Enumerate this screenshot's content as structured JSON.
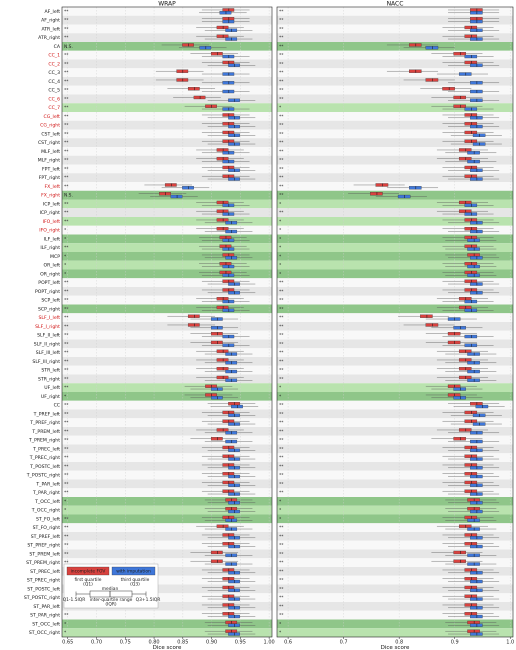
{
  "chart_data": {
    "type": "boxplot",
    "panels": [
      {
        "title": "WRAP",
        "xlabel": "Dice score",
        "xlim": [
          0.64,
          1.005
        ],
        "ticks": [
          "0.65",
          "0.70",
          "0.75",
          "0.80",
          "0.85",
          "0.90",
          "0.95",
          "1.00"
        ],
        "tick_values": [
          0.65,
          0.7,
          0.75,
          0.8,
          0.85,
          0.9,
          0.95,
          1.0
        ]
      },
      {
        "title": "NACC",
        "xlabel": "Dice score",
        "xlim": [
          0.58,
          1.005
        ],
        "ticks": [
          "0.6",
          "0.7",
          "0.8",
          "0.9",
          "1.0"
        ],
        "tick_values": [
          0.6,
          0.7,
          0.8,
          0.9,
          1.0
        ]
      }
    ],
    "series": [
      {
        "name": "incomplete FOV",
        "color": "#d9423f"
      },
      {
        "name": "with imputation",
        "color": "#3f77d9"
      }
    ],
    "colors": {
      "gray_row": "#e6e6e6",
      "green_row": "#b9e3ae",
      "dark_green_row": "#8fc689",
      "white_row": "#f8f8f8"
    },
    "rows": [
      {
        "label": "AF_left",
        "red": false,
        "band": "w",
        "wsig": "**",
        "nsig": "**",
        "w": [
          0.93,
          0.925
        ],
        "n": [
          0.94,
          0.94
        ]
      },
      {
        "label": "AF_right",
        "red": false,
        "band": "g",
        "wsig": "**",
        "nsig": "**",
        "w": [
          0.93,
          0.93
        ],
        "n": [
          0.94,
          0.94
        ]
      },
      {
        "label": "ATR_left",
        "red": false,
        "band": "w",
        "wsig": "**",
        "nsig": "**",
        "w": [
          0.92,
          0.935
        ],
        "n": [
          0.93,
          0.94
        ]
      },
      {
        "label": "ATR_right",
        "red": false,
        "band": "g",
        "wsig": "**",
        "nsig": "**",
        "w": [
          0.92,
          0.935
        ],
        "n": [
          0.93,
          0.94
        ]
      },
      {
        "label": "CA",
        "red": false,
        "band": "dg",
        "wsig": "N.S.",
        "nsig": "**",
        "w": [
          0.86,
          0.89
        ],
        "n": [
          0.83,
          0.86
        ]
      },
      {
        "label": "CC_1",
        "red": true,
        "band": "w",
        "wsig": "**",
        "nsig": "**",
        "w": [
          0.91,
          0.93
        ],
        "n": [
          0.91,
          0.93
        ]
      },
      {
        "label": "CC_2",
        "red": true,
        "band": "g",
        "wsig": "**",
        "nsig": "**",
        "w": [
          0.93,
          0.94
        ],
        "n": [
          0.93,
          0.94
        ]
      },
      {
        "label": "CC_3",
        "red": false,
        "band": "w",
        "wsig": "**",
        "nsig": "**",
        "w": [
          0.85,
          0.93
        ],
        "n": [
          0.83,
          0.92
        ]
      },
      {
        "label": "CC_4",
        "red": false,
        "band": "g",
        "wsig": "**",
        "nsig": "**",
        "w": [
          0.85,
          0.93
        ],
        "n": [
          0.86,
          0.94
        ]
      },
      {
        "label": "CC_5",
        "red": false,
        "band": "w",
        "wsig": "**",
        "nsig": "**",
        "w": [
          0.87,
          0.93
        ],
        "n": [
          0.89,
          0.94
        ]
      },
      {
        "label": "CC_6",
        "red": true,
        "band": "g",
        "wsig": "**",
        "nsig": "**",
        "w": [
          0.88,
          0.94
        ],
        "n": [
          0.91,
          0.94
        ]
      },
      {
        "label": "CC_7",
        "red": true,
        "band": "lg",
        "wsig": "**",
        "nsig": "*",
        "w": [
          0.9,
          0.93
        ],
        "n": [
          0.91,
          0.93
        ]
      },
      {
        "label": "CG_left",
        "red": true,
        "band": "w",
        "wsig": "**",
        "nsig": "**",
        "w": [
          0.93,
          0.94
        ],
        "n": [
          0.93,
          0.94
        ]
      },
      {
        "label": "CG_right",
        "red": true,
        "band": "g",
        "wsig": "**",
        "nsig": "**",
        "w": [
          0.93,
          0.94
        ],
        "n": [
          0.93,
          0.94
        ]
      },
      {
        "label": "CST_left",
        "red": false,
        "band": "w",
        "wsig": "**",
        "nsig": "**",
        "w": [
          0.93,
          0.94
        ],
        "n": [
          0.93,
          0.945
        ]
      },
      {
        "label": "CST_right",
        "red": false,
        "band": "g",
        "wsig": "**",
        "nsig": "**",
        "w": [
          0.93,
          0.94
        ],
        "n": [
          0.93,
          0.945
        ]
      },
      {
        "label": "MLF_left",
        "red": false,
        "band": "w",
        "wsig": "**",
        "nsig": "**",
        "w": [
          0.92,
          0.93
        ],
        "n": [
          0.92,
          0.935
        ]
      },
      {
        "label": "MLF_right",
        "red": false,
        "band": "g",
        "wsig": "**",
        "nsig": "**",
        "w": [
          0.92,
          0.93
        ],
        "n": [
          0.92,
          0.935
        ]
      },
      {
        "label": "FPT_left",
        "red": false,
        "band": "w",
        "wsig": "**",
        "nsig": "**",
        "w": [
          0.93,
          0.94
        ],
        "n": [
          0.93,
          0.94
        ]
      },
      {
        "label": "FPT_right",
        "red": false,
        "band": "g",
        "wsig": "**",
        "nsig": "**",
        "w": [
          0.93,
          0.94
        ],
        "n": [
          0.93,
          0.94
        ]
      },
      {
        "label": "FX_left",
        "red": true,
        "band": "w",
        "wsig": "**",
        "nsig": "**",
        "w": [
          0.83,
          0.86
        ],
        "n": [
          0.77,
          0.83
        ]
      },
      {
        "label": "FX_right",
        "red": true,
        "band": "dg",
        "wsig": "N.S.",
        "nsig": "**",
        "w": [
          0.82,
          0.84
        ],
        "n": [
          0.76,
          0.81
        ]
      },
      {
        "label": "ICP_left",
        "red": false,
        "band": "lg",
        "wsig": "**",
        "nsig": "*",
        "w": [
          0.92,
          0.93
        ],
        "n": [
          0.92,
          0.93
        ]
      },
      {
        "label": "ICP_right",
        "red": false,
        "band": "g",
        "wsig": "**",
        "nsig": "**",
        "w": [
          0.92,
          0.93
        ],
        "n": [
          0.92,
          0.93
        ]
      },
      {
        "label": "IFO_left",
        "red": true,
        "band": "lg",
        "wsig": "**",
        "nsig": "*",
        "w": [
          0.92,
          0.935
        ],
        "n": [
          0.93,
          0.94
        ]
      },
      {
        "label": "IFO_right",
        "red": true,
        "band": "w",
        "wsig": "*",
        "nsig": "*",
        "w": [
          0.92,
          0.935
        ],
        "n": [
          0.93,
          0.94
        ]
      },
      {
        "label": "ILF_left",
        "red": false,
        "band": "dg",
        "wsig": "*",
        "nsig": "*",
        "w": [
          0.925,
          0.93
        ],
        "n": [
          0.93,
          0.935
        ]
      },
      {
        "label": "ILF_right",
        "red": false,
        "band": "lg",
        "wsig": "**",
        "nsig": "*",
        "w": [
          0.925,
          0.93
        ],
        "n": [
          0.93,
          0.935
        ]
      },
      {
        "label": "MCP",
        "red": false,
        "band": "dg",
        "wsig": "*",
        "nsig": "*",
        "w": [
          0.93,
          0.935
        ],
        "n": [
          0.935,
          0.94
        ]
      },
      {
        "label": "OR_left",
        "red": false,
        "band": "lg",
        "wsig": "*",
        "nsig": "*",
        "w": [
          0.925,
          0.93
        ],
        "n": [
          0.93,
          0.935
        ]
      },
      {
        "label": "OR_right",
        "red": false,
        "band": "dg",
        "wsig": "*",
        "nsig": "*",
        "w": [
          0.925,
          0.93
        ],
        "n": [
          0.93,
          0.935
        ]
      },
      {
        "label": "POPT_left",
        "red": false,
        "band": "w",
        "wsig": "**",
        "nsig": "**",
        "w": [
          0.93,
          0.94
        ],
        "n": [
          0.93,
          0.94
        ]
      },
      {
        "label": "POPT_right",
        "red": false,
        "band": "g",
        "wsig": "**",
        "nsig": "**",
        "w": [
          0.93,
          0.94
        ],
        "n": [
          0.93,
          0.94
        ]
      },
      {
        "label": "SCP_left",
        "red": false,
        "band": "w",
        "wsig": "**",
        "nsig": "**",
        "w": [
          0.92,
          0.93
        ],
        "n": [
          0.92,
          0.93
        ]
      },
      {
        "label": "SCP_right",
        "red": false,
        "band": "dg",
        "wsig": "**",
        "nsig": "**",
        "w": [
          0.92,
          0.93
        ],
        "n": [
          0.92,
          0.93
        ]
      },
      {
        "label": "SLF_I_left",
        "red": true,
        "band": "w",
        "wsig": "**",
        "nsig": "**",
        "w": [
          0.87,
          0.91
        ],
        "n": [
          0.85,
          0.9
        ]
      },
      {
        "label": "SLF_I_right",
        "red": true,
        "band": "g",
        "wsig": "**",
        "nsig": "**",
        "w": [
          0.87,
          0.91
        ],
        "n": [
          0.86,
          0.91
        ]
      },
      {
        "label": "SLF_II_left",
        "red": false,
        "band": "w",
        "wsig": "**",
        "nsig": "**",
        "w": [
          0.91,
          0.93
        ],
        "n": [
          0.9,
          0.93
        ]
      },
      {
        "label": "SLF_II_right",
        "red": false,
        "band": "g",
        "wsig": "**",
        "nsig": "**",
        "w": [
          0.91,
          0.93
        ],
        "n": [
          0.9,
          0.93
        ]
      },
      {
        "label": "SLF_III_left",
        "red": false,
        "band": "w",
        "wsig": "**",
        "nsig": "**",
        "w": [
          0.92,
          0.935
        ],
        "n": [
          0.92,
          0.935
        ]
      },
      {
        "label": "SLF_III_right",
        "red": false,
        "band": "g",
        "wsig": "**",
        "nsig": "**",
        "w": [
          0.92,
          0.935
        ],
        "n": [
          0.92,
          0.935
        ]
      },
      {
        "label": "STR_left",
        "red": false,
        "band": "w",
        "wsig": "**",
        "nsig": "**",
        "w": [
          0.92,
          0.935
        ],
        "n": [
          0.92,
          0.935
        ]
      },
      {
        "label": "STR_right",
        "red": false,
        "band": "g",
        "wsig": "**",
        "nsig": "**",
        "w": [
          0.92,
          0.935
        ],
        "n": [
          0.92,
          0.935
        ]
      },
      {
        "label": "UF_left",
        "red": false,
        "band": "lg",
        "wsig": "**",
        "nsig": "*",
        "w": [
          0.9,
          0.91
        ],
        "n": [
          0.9,
          0.91
        ]
      },
      {
        "label": "UF_right",
        "red": false,
        "band": "dg",
        "wsig": "*",
        "nsig": "*",
        "w": [
          0.9,
          0.91
        ],
        "n": [
          0.9,
          0.91
        ]
      },
      {
        "label": "CC",
        "red": false,
        "band": "w",
        "wsig": "**",
        "nsig": "**",
        "w": [
          0.94,
          0.945
        ],
        "n": [
          0.94,
          0.95
        ]
      },
      {
        "label": "T_PREF_left",
        "red": false,
        "band": "g",
        "wsig": "**",
        "nsig": "**",
        "w": [
          0.93,
          0.94
        ],
        "n": [
          0.93,
          0.945
        ]
      },
      {
        "label": "T_PREF_right",
        "red": false,
        "band": "w",
        "wsig": "**",
        "nsig": "**",
        "w": [
          0.93,
          0.94
        ],
        "n": [
          0.93,
          0.945
        ]
      },
      {
        "label": "T_PREM_left",
        "red": false,
        "band": "g",
        "wsig": "**",
        "nsig": "**",
        "w": [
          0.92,
          0.935
        ],
        "n": [
          0.92,
          0.94
        ]
      },
      {
        "label": "T_PREM_right",
        "red": false,
        "band": "w",
        "wsig": "**",
        "nsig": "**",
        "w": [
          0.91,
          0.935
        ],
        "n": [
          0.91,
          0.94
        ]
      },
      {
        "label": "T_PREC_left",
        "red": false,
        "band": "g",
        "wsig": "**",
        "nsig": "**",
        "w": [
          0.93,
          0.94
        ],
        "n": [
          0.93,
          0.94
        ]
      },
      {
        "label": "T_PREC_right",
        "red": false,
        "band": "w",
        "wsig": "**",
        "nsig": "**",
        "w": [
          0.93,
          0.94
        ],
        "n": [
          0.93,
          0.94
        ]
      },
      {
        "label": "T_POSTC_left",
        "red": false,
        "band": "g",
        "wsig": "**",
        "nsig": "**",
        "w": [
          0.93,
          0.94
        ],
        "n": [
          0.93,
          0.94
        ]
      },
      {
        "label": "T_POSTC_right",
        "red": false,
        "band": "w",
        "wsig": "**",
        "nsig": "**",
        "w": [
          0.93,
          0.94
        ],
        "n": [
          0.93,
          0.94
        ]
      },
      {
        "label": "T_PAR_left",
        "red": false,
        "band": "g",
        "wsig": "**",
        "nsig": "**",
        "w": [
          0.93,
          0.94
        ],
        "n": [
          0.93,
          0.94
        ]
      },
      {
        "label": "T_PAR_right",
        "red": false,
        "band": "w",
        "wsig": "**",
        "nsig": "**",
        "w": [
          0.93,
          0.94
        ],
        "n": [
          0.93,
          0.94
        ]
      },
      {
        "label": "T_OCC_left",
        "red": false,
        "band": "dg",
        "wsig": "*",
        "nsig": "*",
        "w": [
          0.935,
          0.94
        ],
        "n": [
          0.935,
          0.94
        ]
      },
      {
        "label": "T_OCC_right",
        "red": false,
        "band": "lg",
        "wsig": "*",
        "nsig": "*",
        "w": [
          0.935,
          0.94
        ],
        "n": [
          0.935,
          0.94
        ]
      },
      {
        "label": "ST_FO_left",
        "red": false,
        "band": "dg",
        "wsig": "**",
        "nsig": "*",
        "w": [
          0.93,
          0.935
        ],
        "n": [
          0.93,
          0.935
        ]
      },
      {
        "label": "ST_FO_right",
        "red": false,
        "band": "w",
        "wsig": "**",
        "nsig": "**",
        "w": [
          0.92,
          0.935
        ],
        "n": [
          0.92,
          0.935
        ]
      },
      {
        "label": "ST_PREF_left",
        "red": false,
        "band": "g",
        "wsig": "**",
        "nsig": "**",
        "w": [
          0.93,
          0.94
        ],
        "n": [
          0.93,
          0.94
        ]
      },
      {
        "label": "ST_PREF_right",
        "red": false,
        "band": "w",
        "wsig": "**",
        "nsig": "**",
        "w": [
          0.93,
          0.94
        ],
        "n": [
          0.93,
          0.94
        ]
      },
      {
        "label": "ST_PREM_left",
        "red": false,
        "band": "g",
        "wsig": "**",
        "nsig": "**",
        "w": [
          0.91,
          0.935
        ],
        "n": [
          0.91,
          0.935
        ]
      },
      {
        "label": "ST_PREM_right",
        "red": false,
        "band": "w",
        "wsig": "**",
        "nsig": "**",
        "w": [
          0.91,
          0.935
        ],
        "n": [
          0.91,
          0.935
        ]
      },
      {
        "label": "ST_PREC_left",
        "red": false,
        "band": "g",
        "wsig": "**",
        "nsig": "**",
        "w": [
          0.93,
          0.94
        ],
        "n": [
          0.93,
          0.94
        ]
      },
      {
        "label": "ST_PREC_right",
        "red": false,
        "band": "w",
        "wsig": "**",
        "nsig": "**",
        "w": [
          0.93,
          0.94
        ],
        "n": [
          0.93,
          0.94
        ]
      },
      {
        "label": "ST_POSTC_left",
        "red": false,
        "band": "g",
        "wsig": "**",
        "nsig": "**",
        "w": [
          0.93,
          0.94
        ],
        "n": [
          0.93,
          0.94
        ]
      },
      {
        "label": "ST_POSTC_right",
        "red": false,
        "band": "w",
        "wsig": "**",
        "nsig": "**",
        "w": [
          0.93,
          0.94
        ],
        "n": [
          0.93,
          0.94
        ]
      },
      {
        "label": "ST_PAR_left",
        "red": false,
        "band": "g",
        "wsig": "**",
        "nsig": "**",
        "w": [
          0.93,
          0.94
        ],
        "n": [
          0.93,
          0.94
        ]
      },
      {
        "label": "ST_PAR_right",
        "red": false,
        "band": "w",
        "wsig": "**",
        "nsig": "**",
        "w": [
          0.93,
          0.94
        ],
        "n": [
          0.93,
          0.94
        ]
      },
      {
        "label": "ST_OCC_left",
        "red": false,
        "band": "dg",
        "wsig": "*",
        "nsig": "*",
        "w": [
          0.935,
          0.94
        ],
        "n": [
          0.935,
          0.94
        ]
      },
      {
        "label": "ST_OCC_right",
        "red": false,
        "band": "lg",
        "wsig": "*",
        "nsig": "*",
        "w": [
          0.935,
          0.94
        ],
        "n": [
          0.935,
          0.94
        ]
      }
    ],
    "legend": {
      "incomplete": "incomplete FOV",
      "imputation": "with imputation",
      "first_quartile": "first quartile",
      "q1": "(Q1)",
      "third_quartile": "third quartile",
      "q3": "(Q3)",
      "median": "median",
      "iqr": "inter-quartile range",
      "iqr_abbr": "(IQR)",
      "lower_whisker": "Q1-1.5IQR",
      "upper_whisker": "Q3+1.5IQR"
    }
  }
}
